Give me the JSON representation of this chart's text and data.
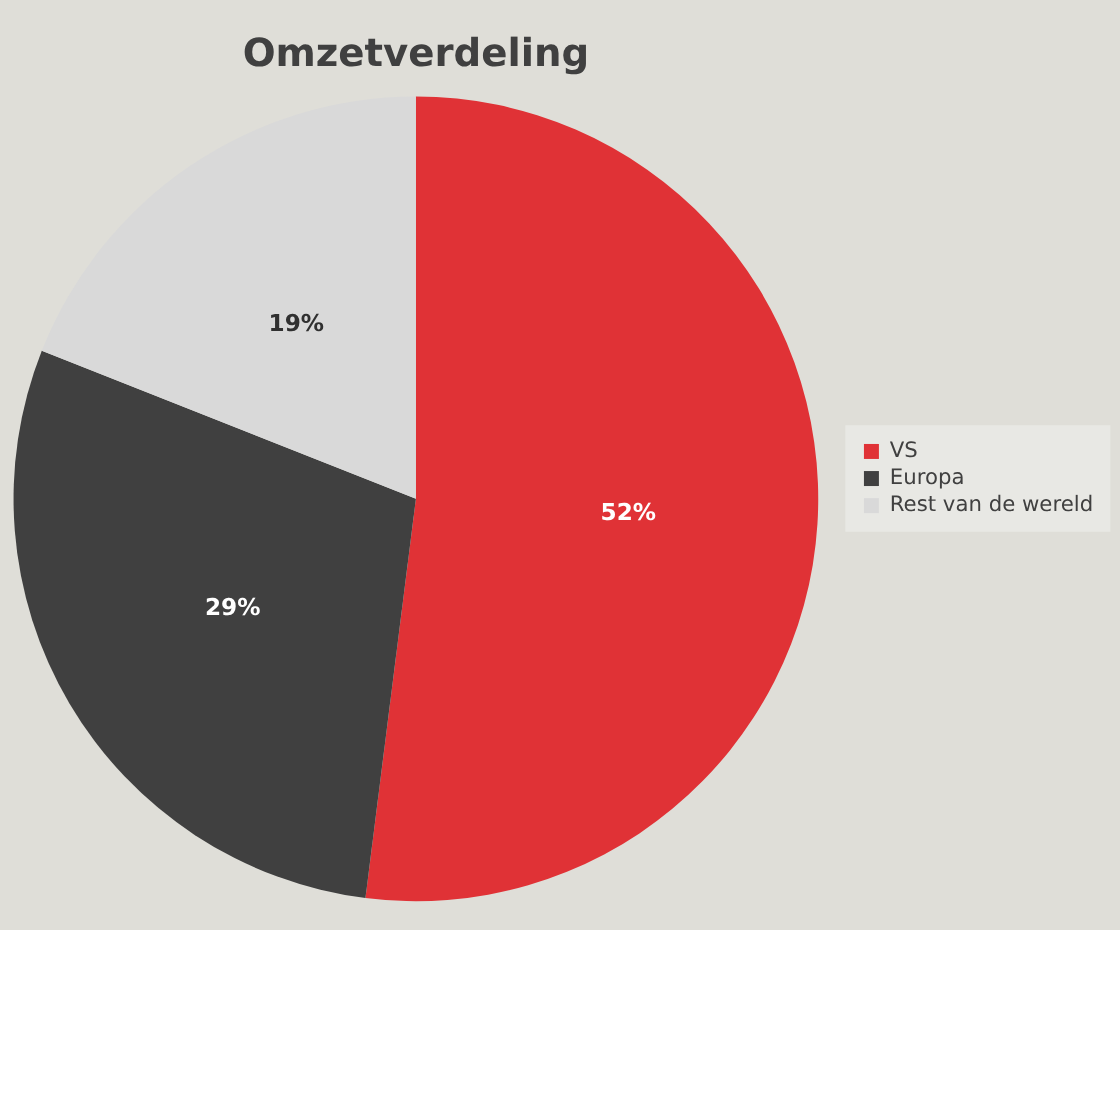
{
  "chart_data": {
    "type": "pie",
    "title": "Omzetverdeling",
    "categories": [
      "VS",
      "Europa",
      "Rest van de wereld"
    ],
    "values": [
      52,
      29,
      19
    ],
    "colors": [
      "#e03236",
      "#404040",
      "#d9d9d9"
    ],
    "value_labels": [
      "52%",
      "29%",
      "19%"
    ],
    "legend": "right"
  }
}
